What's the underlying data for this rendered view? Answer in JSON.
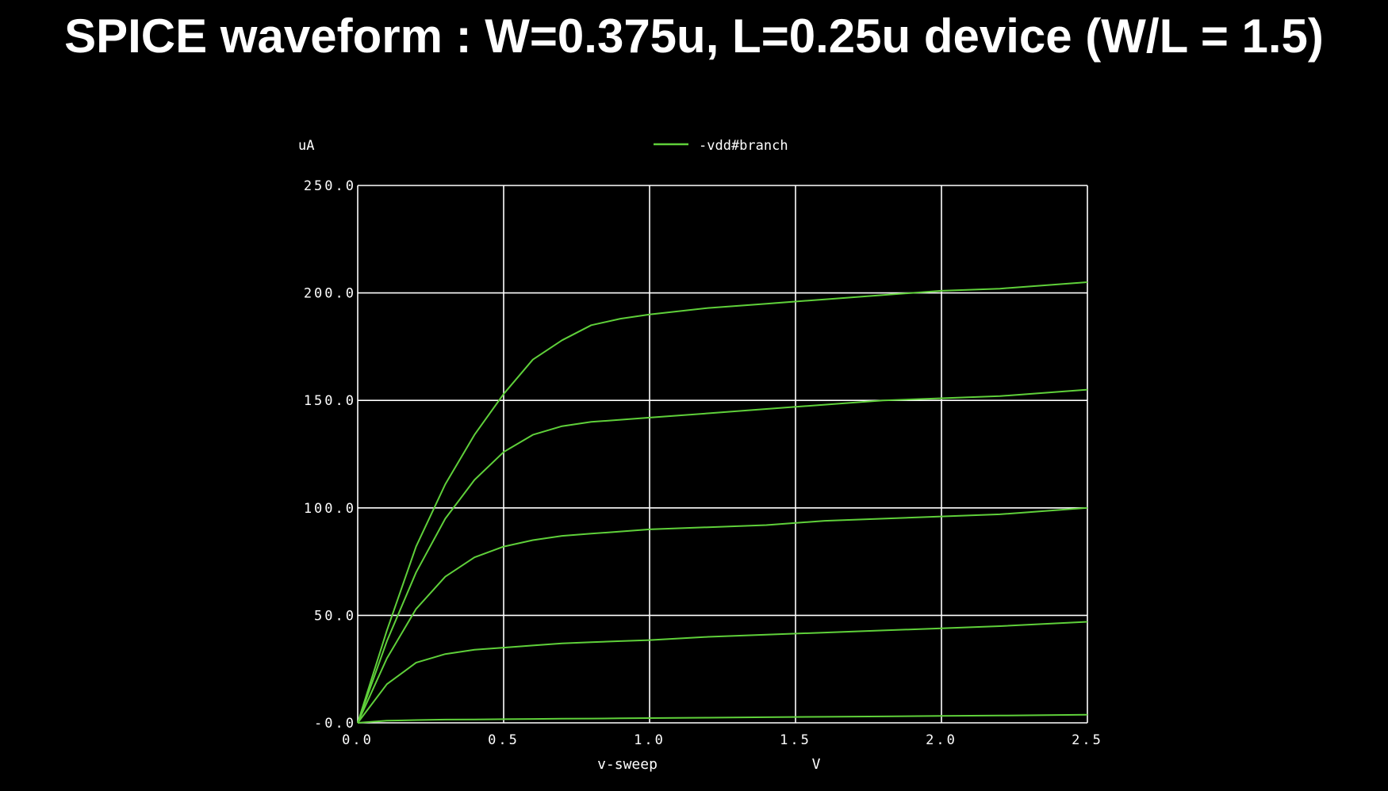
{
  "slide": {
    "title": "SPICE waveform : W=0.375u, L=0.25u device (W/L = 1.5)"
  },
  "colors": {
    "background": "#000000",
    "grid": "#ffffff",
    "trace": "#5fd03a",
    "text": "#ffffff"
  },
  "chart_data": {
    "type": "line",
    "title": "",
    "xlabel": "v-sweep",
    "xunit": "V",
    "yunit": "uA",
    "xlim": [
      0.0,
      2.5
    ],
    "ylim": [
      0.0,
      250.0
    ],
    "grid": true,
    "legend_position": "top",
    "xticks": [
      "0.0",
      "0.5",
      "1.0",
      "1.5",
      "2.0",
      "2.5"
    ],
    "yticks": [
      "-0.0",
      "50.0",
      "100.0",
      "150.0",
      "200.0",
      "250.0"
    ],
    "x": [
      0.0,
      0.1,
      0.2,
      0.3,
      0.4,
      0.5,
      0.6,
      0.7,
      0.8,
      0.9,
      1.0,
      1.2,
      1.4,
      1.6,
      1.8,
      2.0,
      2.2,
      2.5
    ],
    "series": [
      {
        "name": "-vdd#branch",
        "values": [
          0,
          43,
          82,
          111,
          134,
          153,
          169,
          178,
          185,
          188,
          190,
          193,
          195,
          197,
          199,
          201,
          202,
          205
        ]
      },
      {
        "name": "-vdd#branch",
        "values": [
          0,
          38,
          70,
          95,
          113,
          126,
          134,
          138,
          140,
          141,
          142,
          144,
          146,
          148,
          150,
          151,
          152,
          155
        ]
      },
      {
        "name": "-vdd#branch",
        "values": [
          0,
          30,
          53,
          68,
          77,
          82,
          85,
          87,
          88,
          89,
          90,
          91,
          92,
          94,
          95,
          96,
          97,
          100
        ]
      },
      {
        "name": "-vdd#branch",
        "values": [
          0,
          18,
          28,
          32,
          34,
          35,
          36,
          37,
          37.5,
          38,
          38.5,
          40,
          41,
          42,
          43,
          44,
          45,
          47
        ]
      },
      {
        "name": "-vdd#branch",
        "values": [
          0,
          1,
          1.3,
          1.5,
          1.6,
          1.7,
          1.8,
          1.9,
          2.0,
          2.1,
          2.2,
          2.4,
          2.6,
          2.8,
          3.0,
          3.2,
          3.4,
          3.8
        ]
      }
    ]
  }
}
